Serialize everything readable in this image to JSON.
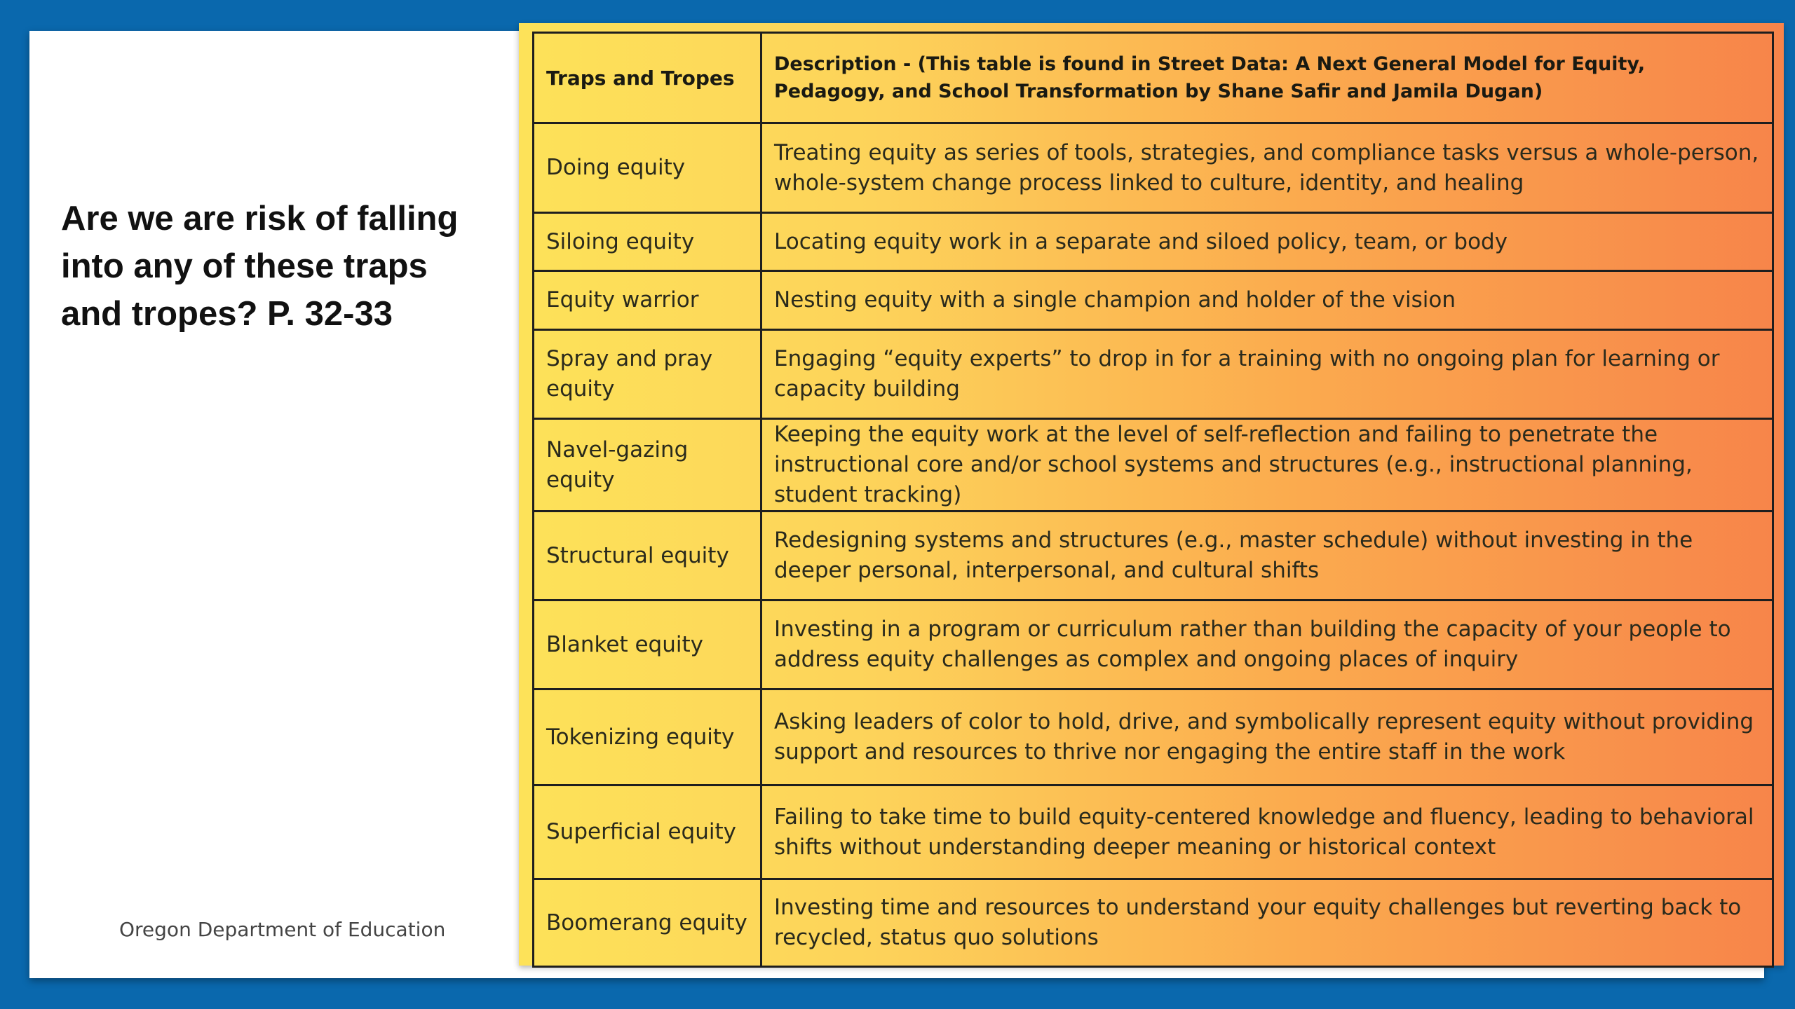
{
  "slide": {
    "question": "Are we are risk of falling into any of these traps and tropes? P. 32-33",
    "footer": "Oregon Department of Education"
  },
  "table": {
    "headers": [
      "Traps and Tropes",
      "Description - (This table is found in Street Data: A Next General Model for Equity, Pedagogy, and School Transformation by Shane Safir and Jamila Dugan)"
    ],
    "rows": [
      {
        "trap": "Doing equity",
        "description": "Treating equity as series of tools, strategies, and compliance tasks versus a whole-person, whole-system change process linked to culture, identity, and healing"
      },
      {
        "trap": "Siloing equity",
        "description": "Locating equity work in a separate and siloed policy, team, or body"
      },
      {
        "trap": "Equity warrior",
        "description": "Nesting equity with a single champion and holder of the vision"
      },
      {
        "trap": "Spray and pray equity",
        "description": "Engaging “equity experts” to drop in for a training with no ongoing plan for learning or capacity building"
      },
      {
        "trap": "Navel-gazing equity",
        "description": "Keeping the equity work at the level of self-reflection and failing to penetrate the instructional core and/or school systems and structures (e.g., instructional planning, student tracking)"
      },
      {
        "trap": "Structural equity",
        "description": "Redesigning systems and structures (e.g., master schedule) without investing in the deeper personal, interpersonal, and cultural shifts"
      },
      {
        "trap": "Blanket equity",
        "description": "Investing in a program or curriculum rather than building the capacity of your people to address equity challenges as complex and ongoing places of inquiry"
      },
      {
        "trap": "Tokenizing equity",
        "description": "Asking leaders of color to hold, drive, and symbolically represent equity without providing support and resources to thrive nor engaging the entire staff in the work"
      },
      {
        "trap": "Superficial equity",
        "description": "Failing to take time to build equity-centered knowledge and fluency, leading to behavioral shifts without understanding deeper meaning or historical context"
      },
      {
        "trap": "Boomerang equity",
        "description": "Investing time and resources to understand your equity challenges but reverting back to recycled, status quo solutions"
      }
    ]
  },
  "colors": {
    "frame_blue": "#0a68ad",
    "gradient_start": "#fde259",
    "gradient_end": "#f7844a",
    "table_border": "#1e1e1e"
  }
}
